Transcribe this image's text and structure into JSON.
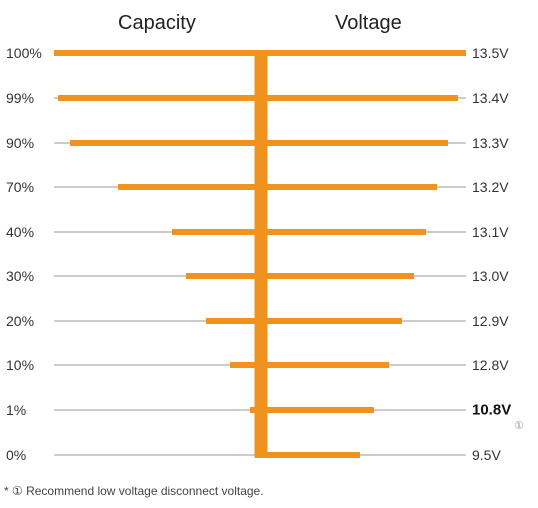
{
  "chart_data": {
    "type": "bar",
    "title": "",
    "left_axis_label": "Capacity",
    "right_axis_label": "Voltage",
    "capacity_levels": [
      "100%",
      "99%",
      "90%",
      "70%",
      "40%",
      "30%",
      "20%",
      "10%",
      "1%",
      "0%"
    ],
    "voltage_levels": [
      "13.5V",
      "13.4V",
      "13.3V",
      "13.2V",
      "13.1V",
      "13.0V",
      "12.9V",
      "12.8V",
      "10.8V",
      "9.5V"
    ],
    "capacity_percent": [
      100,
      99,
      90,
      70,
      40,
      30,
      20,
      10,
      1,
      0
    ],
    "voltage_values": [
      13.5,
      13.4,
      13.3,
      13.2,
      13.1,
      13.0,
      12.9,
      12.8,
      10.8,
      9.5
    ],
    "highlighted_voltage": "10.8V",
    "highlight_marker": "①",
    "bar_color": "#f0921e",
    "line_color": "#999999"
  },
  "footnote": "* ① Recommend low voltage disconnect voltage."
}
